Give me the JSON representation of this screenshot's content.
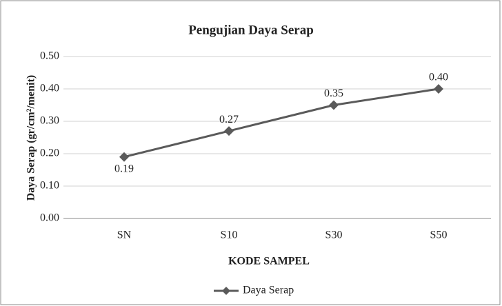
{
  "chart_data": {
    "type": "line",
    "title": "Pengujian Daya Serap",
    "x_label": "KODE SAMPEL",
    "y_label": "Daya Serap (gr/cm²/menit)",
    "categories": [
      "SN",
      "S10",
      "S30",
      "S50"
    ],
    "series": [
      {
        "name": "Daya Serap",
        "color": "#5a5a5a",
        "values": [
          0.19,
          0.27,
          0.35,
          0.4
        ],
        "value_labels": [
          "0.19",
          "0.27",
          "0.35",
          "0.40"
        ]
      }
    ],
    "ylim": [
      0,
      0.5
    ],
    "yticks": [
      {
        "value": 0,
        "label": "0.00"
      },
      {
        "value": 0.1,
        "label": "0.10"
      },
      {
        "value": 0.2,
        "label": "0.20"
      },
      {
        "value": 0.3,
        "label": "0.30"
      },
      {
        "value": 0.4,
        "label": "0.40"
      },
      {
        "value": 0.5,
        "label": "0.50"
      }
    ],
    "grid": true,
    "legend": "bottom"
  }
}
